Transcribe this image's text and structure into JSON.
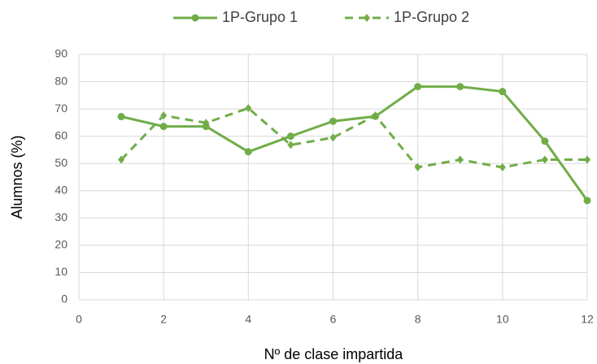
{
  "chart_data": {
    "type": "line",
    "xlabel": "Nº de clase impartida",
    "ylabel": "Alumnos (%)",
    "x": [
      1,
      2,
      3,
      4,
      5,
      6,
      7,
      8,
      9,
      10,
      11,
      12
    ],
    "series": [
      {
        "name": "1P-Grupo 1",
        "color": "#70ad47",
        "dash": "solid",
        "marker": "circle",
        "values": [
          67.2,
          63.6,
          63.6,
          54.3,
          60,
          65.5,
          67.3,
          78.2,
          78.2,
          76.4,
          58.2,
          36.4
        ]
      },
      {
        "name": "1P-Grupo 2",
        "color": "#70ad47",
        "dash": "dashed",
        "marker": "diamond",
        "values": [
          51.4,
          67.6,
          64.9,
          70.3,
          56.8,
          59.5,
          67.6,
          48.6,
          51.4,
          48.6,
          51.4,
          51.4
        ]
      }
    ],
    "xlim": [
      0,
      12
    ],
    "xticks": [
      0,
      2,
      4,
      6,
      8,
      10,
      12
    ],
    "ylim": [
      0,
      90
    ],
    "yticks": [
      0,
      10,
      20,
      30,
      40,
      50,
      60,
      70,
      80,
      90
    ],
    "grid": true,
    "legend": "top"
  }
}
